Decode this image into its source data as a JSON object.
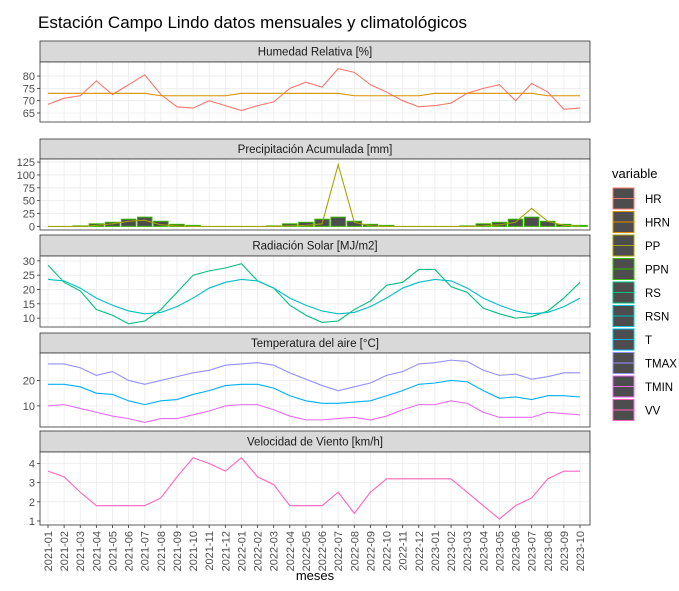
{
  "title": "Estación Campo Lindo datos mensuales y climatológicos",
  "x_label": "meses",
  "legend_title": "variable",
  "legend_key_fill": "#4D4D4D",
  "categories": [
    "2021-01",
    "2021-02",
    "2021-03",
    "2021-04",
    "2021-05",
    "2021-06",
    "2021-07",
    "2021-08",
    "2021-09",
    "2021-10",
    "2021-11",
    "2021-12",
    "2022-01",
    "2022-02",
    "2022-03",
    "2022-04",
    "2022-05",
    "2022-06",
    "2022-07",
    "2022-08",
    "2022-09",
    "2022-10",
    "2022-11",
    "2022-12",
    "2023-01",
    "2023-02",
    "2023-03",
    "2023-04",
    "2023-05",
    "2023-06",
    "2023-07",
    "2023-08",
    "2023-09",
    "2023-10"
  ],
  "chart_data": [
    {
      "type": "line",
      "title": "Humedad Relativa [%]",
      "ylim": [
        61.35,
        85.7
      ],
      "yticks": [
        65,
        70,
        75,
        80
      ],
      "grid": true,
      "series": [
        {
          "name": "HR",
          "type": "line",
          "color": "#F8766D",
          "values": [
            68.5,
            71,
            72,
            78,
            72.5,
            76.5,
            80.5,
            72.5,
            67.5,
            67,
            70,
            68,
            66,
            68,
            69.5,
            75,
            77.5,
            75.5,
            83,
            81.5,
            76.5,
            73.5,
            70,
            67.5,
            68,
            69,
            73,
            75,
            76.5,
            70,
            77,
            73.5,
            66.5,
            67
          ]
        },
        {
          "name": "HRN",
          "type": "line",
          "color": "#D89000",
          "values": [
            73,
            73,
            73,
            73,
            73,
            73,
            73,
            72,
            72,
            72,
            72,
            72,
            73,
            73,
            73,
            73,
            73,
            73,
            73,
            72,
            72,
            72,
            72,
            72,
            73,
            73,
            73,
            73,
            73,
            73,
            73,
            72,
            72,
            72
          ]
        }
      ]
    },
    {
      "type": "line",
      "title": "Precipitación Acumulada [mm]",
      "ylim": [
        -7,
        131
      ],
      "yticks": [
        0,
        25,
        50,
        75,
        100,
        125
      ],
      "grid": true,
      "series": [
        {
          "name": "PP",
          "type": "line",
          "color": "#A3A500",
          "values": [
            0,
            0,
            0,
            2,
            5,
            10,
            12,
            3,
            1,
            0,
            0,
            0,
            0,
            0,
            0,
            1,
            2,
            5,
            120,
            8,
            1,
            0,
            0,
            0,
            0,
            0,
            0,
            1,
            3,
            8,
            35,
            10,
            2,
            1
          ]
        },
        {
          "name": "PPN",
          "type": "bar",
          "color": "#39B600",
          "values": [
            0,
            0,
            1,
            5,
            8,
            14,
            18,
            10,
            4,
            2,
            0,
            0,
            0,
            0,
            1,
            5,
            8,
            14,
            18,
            10,
            4,
            2,
            0,
            0,
            0,
            0,
            1,
            5,
            8,
            14,
            18,
            10,
            4,
            2
          ]
        }
      ]
    },
    {
      "type": "line",
      "title": "Radiación Solar [MJ/m2]",
      "ylim": [
        6.9,
        31.7
      ],
      "yticks": [
        10,
        15,
        20,
        25,
        30
      ],
      "grid": true,
      "series": [
        {
          "name": "RS",
          "type": "line",
          "color": "#00BF7D",
          "values": [
            28.5,
            22.5,
            19.5,
            13,
            11,
            8,
            9,
            13,
            19,
            25,
            26.5,
            27.5,
            29,
            23,
            20.5,
            14.5,
            11,
            8.5,
            9,
            13,
            16,
            21.5,
            22.5,
            27,
            27,
            21,
            19,
            13.5,
            11.5,
            10,
            10.5,
            12.5,
            17,
            22.5
          ]
        },
        {
          "name": "RSN",
          "type": "line",
          "color": "#00BFC4",
          "values": [
            23.5,
            23,
            20.5,
            17,
            14.5,
            12.5,
            11.5,
            12,
            14,
            17,
            20.5,
            22.5,
            23.5,
            23,
            20.5,
            17,
            14.5,
            12.5,
            11.5,
            12,
            14,
            17,
            20.5,
            22.5,
            23.5,
            23,
            20.5,
            17,
            14.5,
            12.5,
            11.5,
            12,
            14,
            17
          ]
        }
      ]
    },
    {
      "type": "line",
      "title": "Temperatura del aire [°C]",
      "ylim": [
        1.7,
        30.8
      ],
      "yticks": [
        10,
        20
      ],
      "grid": true,
      "series": [
        {
          "name": "T",
          "type": "line",
          "color": "#00B0F6",
          "values": [
            18.5,
            18.5,
            17.5,
            15,
            14.5,
            12,
            10.5,
            12,
            12.5,
            14.5,
            16,
            18,
            18.5,
            18.5,
            17,
            14,
            12,
            11,
            11,
            11.5,
            12,
            14,
            16,
            18.5,
            19,
            20,
            19.5,
            16,
            13,
            13.5,
            12.5,
            14,
            14,
            13.5
          ]
        },
        {
          "name": "TMAX",
          "type": "line",
          "color": "#9590FF",
          "values": [
            26.5,
            26.5,
            25,
            22,
            23.5,
            20,
            18.5,
            20,
            21.5,
            23,
            24,
            26,
            26.5,
            27,
            26,
            23,
            20.5,
            18,
            16,
            17.5,
            19,
            22,
            23.5,
            26.5,
            27,
            28,
            27.5,
            24,
            22,
            22.5,
            20.5,
            21.5,
            23,
            23
          ]
        },
        {
          "name": "TMIN",
          "type": "line",
          "color": "#E76BF3",
          "values": [
            10,
            10.5,
            9,
            7.5,
            6,
            5,
            3.5,
            5,
            5,
            6.5,
            8,
            10,
            10.5,
            10.5,
            8.5,
            6,
            4.5,
            4.5,
            5,
            5.5,
            4.5,
            6,
            8.5,
            10.5,
            10.5,
            12,
            11,
            7.5,
            5.5,
            5.5,
            5.5,
            7.5,
            7,
            6.5
          ]
        }
      ]
    },
    {
      "type": "line",
      "title": "Velocidad de Viento [km/h]",
      "ylim": [
        0.79,
        4.6
      ],
      "yticks": [
        1,
        2,
        3,
        4
      ],
      "grid": true,
      "series": [
        {
          "name": "VV",
          "type": "line",
          "color": "#FF62BC",
          "values": [
            3.6,
            3.3,
            2.5,
            1.8,
            1.8,
            1.8,
            1.8,
            2.2,
            3.3,
            4.3,
            4.0,
            3.6,
            4.3,
            3.3,
            2.9,
            1.8,
            1.8,
            1.8,
            2.5,
            1.4,
            2.5,
            3.2,
            3.2,
            3.2,
            3.2,
            3.2,
            2.5,
            1.8,
            1.1,
            1.8,
            2.2,
            3.2,
            3.6,
            3.6
          ]
        }
      ]
    }
  ]
}
